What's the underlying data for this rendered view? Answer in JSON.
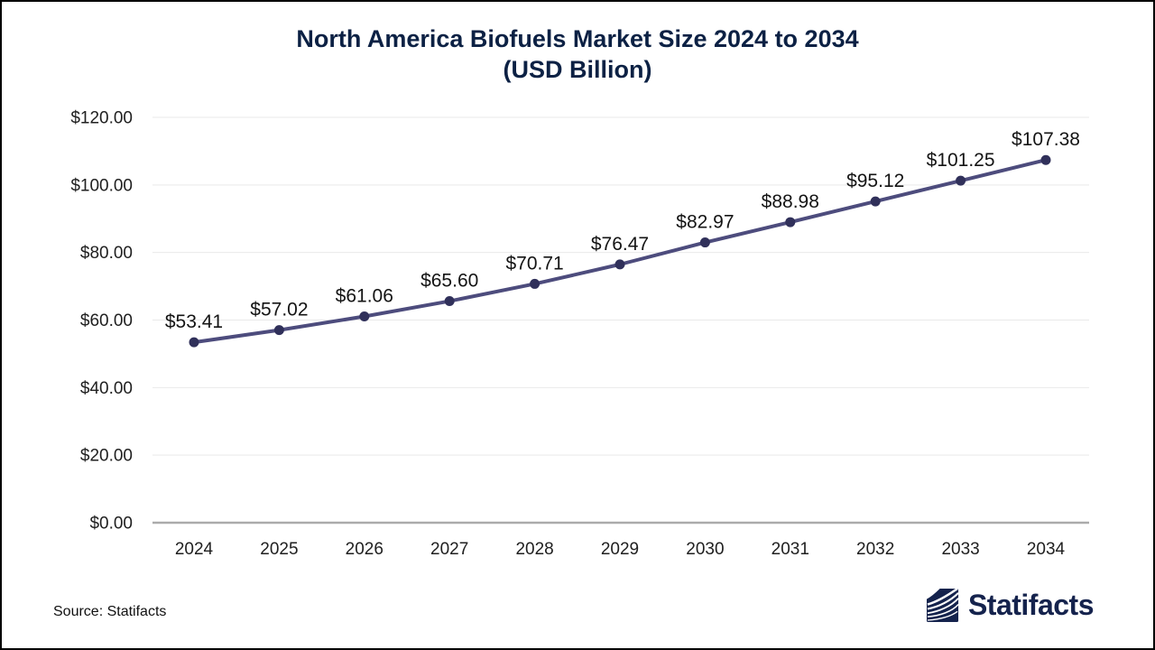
{
  "title": {
    "line1": "North America Biofuels Market Size 2024 to 2034",
    "line2": "(USD Billion)",
    "color": "#0c2144"
  },
  "footer": {
    "source": "Source: Statifacts",
    "brand_name": "Statifacts",
    "brand_color": "#15234d"
  },
  "chart_data": {
    "type": "line",
    "title": "North America Biofuels Market Size 2024 to 2034 (USD Billion)",
    "categories": [
      "2024",
      "2025",
      "2026",
      "2027",
      "2028",
      "2029",
      "2030",
      "2031",
      "2032",
      "2033",
      "2034"
    ],
    "values": [
      53.41,
      57.02,
      61.06,
      65.6,
      70.71,
      76.47,
      82.97,
      88.98,
      95.12,
      101.25,
      107.38
    ],
    "point_labels": [
      "$53.41",
      "$57.02",
      "$61.06",
      "$65.60",
      "$70.71",
      "$76.47",
      "$82.97",
      "$88.98",
      "$95.12",
      "$101.25",
      "$107.38"
    ],
    "xlabel": "",
    "ylabel": "",
    "ylim": [
      0,
      120
    ],
    "yticks": [
      0,
      20,
      40,
      60,
      80,
      100,
      120
    ],
    "ytick_labels": [
      "$0.00",
      "$20.00",
      "$40.00",
      "$60.00",
      "$80.00",
      "$100.00",
      "$120.00"
    ],
    "grid": true,
    "legend": false,
    "line_color": "#4d4c7d",
    "marker_color": "#30305a",
    "grid_color": "#e9e9e9",
    "axis_line_color": "#ababab",
    "tick_label_color": "#202020",
    "data_label_color": "#141414"
  }
}
